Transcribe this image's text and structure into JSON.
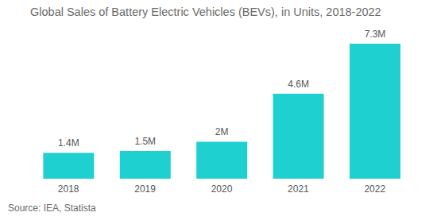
{
  "chart_data": {
    "type": "bar",
    "title": "Global Sales of Battery Electric Vehicles (BEVs), in Units, 2018-2022",
    "categories": [
      "2018",
      "2019",
      "2020",
      "2021",
      "2022"
    ],
    "values": [
      1.4,
      1.5,
      2,
      4.6,
      7.3
    ],
    "value_labels": [
      "1.4M",
      "1.5M",
      "2M",
      "4.6M",
      "7.3M"
    ],
    "color": "#1fd0d0",
    "data_labels": true,
    "tick_labels": "x",
    "source": "Source: IEA, Statista"
  }
}
